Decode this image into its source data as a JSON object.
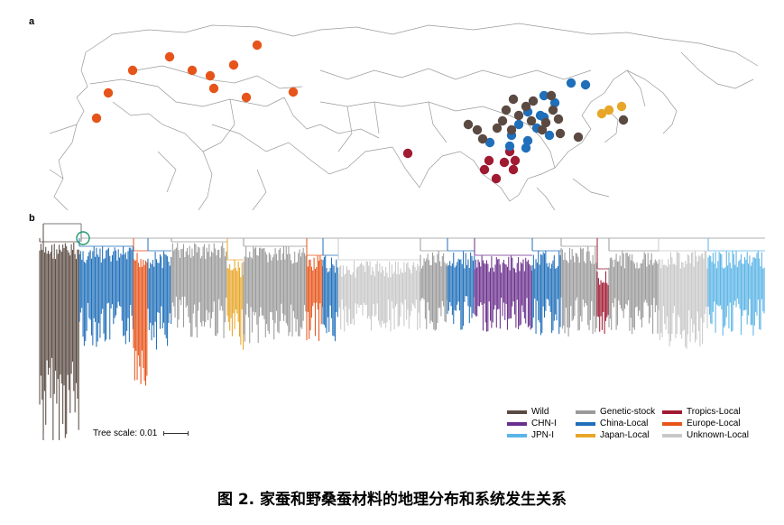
{
  "panels": {
    "a": "a",
    "b": "b"
  },
  "colors": {
    "Wild": "#5a4a42",
    "CHN-I": "#6a2e8c",
    "JPN-I": "#5ab4e6",
    "Genetic-stock": "#9a9a9a",
    "China-Local": "#1f6fba",
    "Japan-Local": "#e8a628",
    "Tropics-Local": "#a01a32",
    "Europe-Local": "#e6541a",
    "Unknown-Local": "#c8c8c8"
  },
  "legend": {
    "items": [
      {
        "label": "Wild",
        "color_key": "Wild"
      },
      {
        "label": "CHN-I",
        "color_key": "CHN-I"
      },
      {
        "label": "JPN-I",
        "color_key": "JPN-I"
      },
      {
        "label": "Genetic-stock",
        "color_key": "Genetic-stock"
      },
      {
        "label": "China-Local",
        "color_key": "China-Local"
      },
      {
        "label": "Japan-Local",
        "color_key": "Japan-Local"
      },
      {
        "label": "Tropics-Local",
        "color_key": "Tropics-Local"
      },
      {
        "label": "Europe-Local",
        "color_key": "Europe-Local"
      },
      {
        "label": "Unknown-Local",
        "color_key": "Unknown-Local"
      }
    ]
  },
  "scale": {
    "label": "Tree scale: 0.01"
  },
  "caption": "图 2.  家蚕和野桑蚕材料的地理分布和系统发生关系"
}
